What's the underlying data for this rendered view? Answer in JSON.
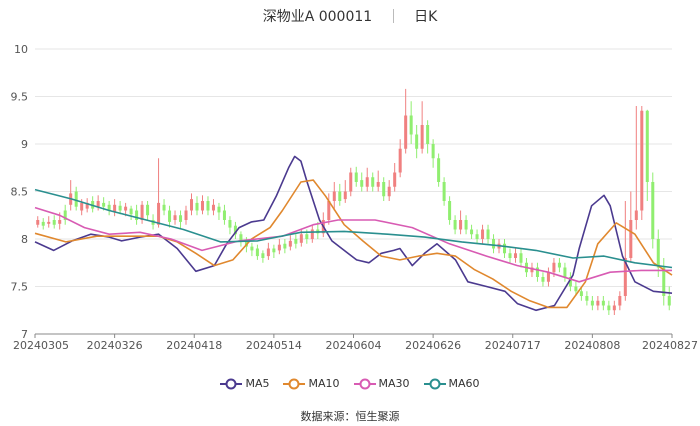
{
  "header": {
    "stock_name": "深物业A 000011",
    "period": "日K"
  },
  "source": "数据来源：恒生聚源",
  "colors": {
    "up": "#f08080",
    "down": "#90ee70",
    "grid": "#e6e6e6",
    "axis": "#888888"
  },
  "chart_data": {
    "type": "candlestick",
    "title": "深物业A 000011",
    "period": "日K",
    "ylim": [
      7,
      10
    ],
    "yticks": [
      "10",
      "9.5",
      "9",
      "8.5",
      "8",
      "7.5",
      "7"
    ],
    "xticks": [
      "20240305",
      "20240326",
      "20240418",
      "20240514",
      "20240604",
      "20240626",
      "20240717",
      "20240808",
      "20240827"
    ],
    "grid": true,
    "legend_position": "bottom",
    "series": [
      {
        "name": "MA5",
        "color": "#4b3a8f",
        "values": [
          [
            0,
            7.97
          ],
          [
            6,
            7.88
          ],
          [
            12,
            7.98
          ],
          [
            18,
            8.05
          ],
          [
            24,
            8.02
          ],
          [
            28,
            7.98
          ],
          [
            34,
            8.02
          ],
          [
            40,
            8.05
          ],
          [
            46,
            7.9
          ],
          [
            52,
            7.66
          ],
          [
            58,
            7.72
          ],
          [
            62,
            7.95
          ],
          [
            66,
            8.12
          ],
          [
            70,
            8.18
          ],
          [
            74,
            8.2
          ],
          [
            78,
            8.45
          ],
          [
            82,
            8.75
          ],
          [
            84,
            8.87
          ],
          [
            86,
            8.82
          ],
          [
            88,
            8.6
          ],
          [
            92,
            8.2
          ],
          [
            96,
            7.98
          ],
          [
            100,
            7.88
          ],
          [
            104,
            7.78
          ],
          [
            108,
            7.75
          ],
          [
            112,
            7.85
          ],
          [
            116,
            7.88
          ],
          [
            118,
            7.9
          ],
          [
            122,
            7.72
          ],
          [
            126,
            7.85
          ],
          [
            130,
            7.95
          ],
          [
            136,
            7.78
          ],
          [
            140,
            7.55
          ],
          [
            146,
            7.5
          ],
          [
            152,
            7.45
          ],
          [
            156,
            7.32
          ],
          [
            162,
            7.25
          ],
          [
            168,
            7.3
          ],
          [
            174,
            7.62
          ],
          [
            176,
            7.9
          ],
          [
            180,
            8.35
          ],
          [
            184,
            8.46
          ],
          [
            186,
            8.35
          ],
          [
            190,
            7.82
          ],
          [
            194,
            7.55
          ],
          [
            200,
            7.45
          ],
          [
            206,
            7.43
          ]
        ]
      },
      {
        "name": "MA10",
        "color": "#e0882e",
        "values": [
          [
            0,
            8.06
          ],
          [
            10,
            7.97
          ],
          [
            20,
            8.03
          ],
          [
            30,
            8.03
          ],
          [
            40,
            8.03
          ],
          [
            46,
            7.97
          ],
          [
            52,
            7.85
          ],
          [
            58,
            7.72
          ],
          [
            64,
            7.78
          ],
          [
            70,
            8.0
          ],
          [
            76,
            8.12
          ],
          [
            80,
            8.3
          ],
          [
            86,
            8.6
          ],
          [
            90,
            8.62
          ],
          [
            94,
            8.45
          ],
          [
            100,
            8.15
          ],
          [
            106,
            7.98
          ],
          [
            112,
            7.82
          ],
          [
            118,
            7.78
          ],
          [
            124,
            7.82
          ],
          [
            130,
            7.85
          ],
          [
            136,
            7.82
          ],
          [
            142,
            7.68
          ],
          [
            148,
            7.58
          ],
          [
            154,
            7.45
          ],
          [
            160,
            7.35
          ],
          [
            166,
            7.28
          ],
          [
            172,
            7.28
          ],
          [
            178,
            7.55
          ],
          [
            182,
            7.95
          ],
          [
            188,
            8.17
          ],
          [
            194,
            8.05
          ],
          [
            200,
            7.75
          ],
          [
            206,
            7.62
          ]
        ]
      },
      {
        "name": "MA30",
        "color": "#d85bb3",
        "values": [
          [
            0,
            8.33
          ],
          [
            8,
            8.25
          ],
          [
            16,
            8.12
          ],
          [
            24,
            8.05
          ],
          [
            34,
            8.07
          ],
          [
            44,
            8.0
          ],
          [
            54,
            7.88
          ],
          [
            66,
            7.98
          ],
          [
            80,
            8.03
          ],
          [
            90,
            8.15
          ],
          [
            98,
            8.2
          ],
          [
            110,
            8.2
          ],
          [
            122,
            8.12
          ],
          [
            134,
            7.95
          ],
          [
            146,
            7.82
          ],
          [
            156,
            7.72
          ],
          [
            166,
            7.65
          ],
          [
            176,
            7.55
          ],
          [
            186,
            7.65
          ],
          [
            196,
            7.67
          ],
          [
            206,
            7.67
          ]
        ]
      },
      {
        "name": "MA60",
        "color": "#2a8f8f",
        "values": [
          [
            0,
            8.52
          ],
          [
            12,
            8.42
          ],
          [
            24,
            8.3
          ],
          [
            36,
            8.2
          ],
          [
            48,
            8.1
          ],
          [
            60,
            7.97
          ],
          [
            72,
            7.98
          ],
          [
            86,
            8.07
          ],
          [
            100,
            8.08
          ],
          [
            114,
            8.05
          ],
          [
            126,
            8.02
          ],
          [
            138,
            7.97
          ],
          [
            150,
            7.93
          ],
          [
            162,
            7.88
          ],
          [
            174,
            7.8
          ],
          [
            184,
            7.82
          ],
          [
            194,
            7.75
          ],
          [
            206,
            7.7
          ]
        ]
      }
    ],
    "candles": [
      [
        8.15,
        8.2,
        8.12,
        8.24
      ],
      [
        8.18,
        8.14,
        8.1,
        8.22
      ],
      [
        8.16,
        8.18,
        8.12,
        8.24
      ],
      [
        8.2,
        8.15,
        8.11,
        8.25
      ],
      [
        8.16,
        8.2,
        8.1,
        8.28
      ],
      [
        8.3,
        8.2,
        8.15,
        8.36
      ],
      [
        8.36,
        8.48,
        8.3,
        8.62
      ],
      [
        8.5,
        8.34,
        8.3,
        8.55
      ],
      [
        8.3,
        8.38,
        8.25,
        8.42
      ],
      [
        8.32,
        8.38,
        8.28,
        8.43
      ],
      [
        8.4,
        8.32,
        8.28,
        8.45
      ],
      [
        8.34,
        8.4,
        8.3,
        8.46
      ],
      [
        8.38,
        8.34,
        8.3,
        8.44
      ],
      [
        8.36,
        8.3,
        8.25,
        8.4
      ],
      [
        8.28,
        8.36,
        8.24,
        8.42
      ],
      [
        8.35,
        8.3,
        8.26,
        8.4
      ],
      [
        8.3,
        8.34,
        8.24,
        8.38
      ],
      [
        8.32,
        8.26,
        8.2,
        8.35
      ],
      [
        8.3,
        8.2,
        8.15,
        8.36
      ],
      [
        8.2,
        8.36,
        8.16,
        8.4
      ],
      [
        8.36,
        8.25,
        8.2,
        8.4
      ],
      [
        8.2,
        8.15,
        8.1,
        8.26
      ],
      [
        8.15,
        8.38,
        8.12,
        8.85
      ],
      [
        8.36,
        8.3,
        8.25,
        8.42
      ],
      [
        8.3,
        8.18,
        8.12,
        8.35
      ],
      [
        8.2,
        8.25,
        8.15,
        8.3
      ],
      [
        8.25,
        8.18,
        8.1,
        8.3
      ],
      [
        8.2,
        8.3,
        8.15,
        8.35
      ],
      [
        8.3,
        8.42,
        8.25,
        8.48
      ],
      [
        8.38,
        8.3,
        8.25,
        8.45
      ],
      [
        8.3,
        8.4,
        8.26,
        8.46
      ],
      [
        8.4,
        8.3,
        8.25,
        8.45
      ],
      [
        8.3,
        8.36,
        8.25,
        8.42
      ],
      [
        8.34,
        8.28,
        8.2,
        8.38
      ],
      [
        8.3,
        8.2,
        8.15,
        8.36
      ],
      [
        8.2,
        8.12,
        8.05,
        8.24
      ],
      [
        8.14,
        8.05,
        8.0,
        8.18
      ],
      [
        8.05,
        7.98,
        7.92,
        8.08
      ],
      [
        7.98,
        7.92,
        7.86,
        8.02
      ],
      [
        7.92,
        7.88,
        7.82,
        7.96
      ],
      [
        7.9,
        7.82,
        7.78,
        7.94
      ],
      [
        7.85,
        7.8,
        7.75,
        7.88
      ],
      [
        7.82,
        7.9,
        7.78,
        7.96
      ],
      [
        7.9,
        7.86,
        7.8,
        7.94
      ],
      [
        7.88,
        7.94,
        7.84,
        8.0
      ],
      [
        7.95,
        7.9,
        7.85,
        8.0
      ],
      [
        7.92,
        7.98,
        7.88,
        8.04
      ],
      [
        8.0,
        7.95,
        7.9,
        8.05
      ],
      [
        7.96,
        8.05,
        7.92,
        8.1
      ],
      [
        8.05,
        8.0,
        7.95,
        8.1
      ],
      [
        8.0,
        8.1,
        7.96,
        8.15
      ],
      [
        8.1,
        8.06,
        8.0,
        8.18
      ],
      [
        8.06,
        8.2,
        8.02,
        8.28
      ],
      [
        8.2,
        8.4,
        8.15,
        8.48
      ],
      [
        8.4,
        8.5,
        8.3,
        8.6
      ],
      [
        8.5,
        8.4,
        8.35,
        8.58
      ],
      [
        8.42,
        8.5,
        8.38,
        8.62
      ],
      [
        8.5,
        8.7,
        8.45,
        8.75
      ],
      [
        8.7,
        8.6,
        8.55,
        8.76
      ],
      [
        8.62,
        8.55,
        8.5,
        8.7
      ],
      [
        8.55,
        8.65,
        8.5,
        8.75
      ],
      [
        8.65,
        8.55,
        8.5,
        8.7
      ],
      [
        8.55,
        8.6,
        8.5,
        8.72
      ],
      [
        8.6,
        8.45,
        8.4,
        8.65
      ],
      [
        8.45,
        8.55,
        8.4,
        8.62
      ],
      [
        8.55,
        8.7,
        8.5,
        8.8
      ],
      [
        8.7,
        8.95,
        8.65,
        9.05
      ],
      [
        8.95,
        9.3,
        8.9,
        9.58
      ],
      [
        9.3,
        9.1,
        9.0,
        9.45
      ],
      [
        9.1,
        8.95,
        8.85,
        9.2
      ],
      [
        8.95,
        9.2,
        8.9,
        9.45
      ],
      [
        9.2,
        9.0,
        8.9,
        9.25
      ],
      [
        9.0,
        8.85,
        8.75,
        9.05
      ],
      [
        8.85,
        8.6,
        8.55,
        8.9
      ],
      [
        8.6,
        8.4,
        8.35,
        8.65
      ],
      [
        8.4,
        8.2,
        8.15,
        8.45
      ],
      [
        8.2,
        8.1,
        8.05,
        8.25
      ],
      [
        8.1,
        8.2,
        8.05,
        8.3
      ],
      [
        8.2,
        8.1,
        8.05,
        8.25
      ],
      [
        8.1,
        8.05,
        8.0,
        8.15
      ],
      [
        8.05,
        8.0,
        7.95,
        8.1
      ],
      [
        8.0,
        8.1,
        7.95,
        8.15
      ],
      [
        8.1,
        8.0,
        7.95,
        8.15
      ],
      [
        8.0,
        7.9,
        7.85,
        8.05
      ],
      [
        7.9,
        7.95,
        7.85,
        8.0
      ],
      [
        7.95,
        7.85,
        7.8,
        8.0
      ],
      [
        7.85,
        7.8,
        7.75,
        7.9
      ],
      [
        7.8,
        7.85,
        7.75,
        7.9
      ],
      [
        7.85,
        7.75,
        7.7,
        7.9
      ],
      [
        7.75,
        7.65,
        7.6,
        7.8
      ],
      [
        7.65,
        7.7,
        7.6,
        7.75
      ],
      [
        7.7,
        7.6,
        7.55,
        7.75
      ],
      [
        7.6,
        7.55,
        7.5,
        7.65
      ],
      [
        7.55,
        7.65,
        7.5,
        7.7
      ],
      [
        7.65,
        7.75,
        7.6,
        7.8
      ],
      [
        7.75,
        7.7,
        7.65,
        7.8
      ],
      [
        7.7,
        7.6,
        7.55,
        7.75
      ],
      [
        7.6,
        7.5,
        7.45,
        7.65
      ],
      [
        7.5,
        7.45,
        7.4,
        7.55
      ],
      [
        7.45,
        7.4,
        7.35,
        7.5
      ],
      [
        7.4,
        7.35,
        7.3,
        7.45
      ],
      [
        7.35,
        7.3,
        7.25,
        7.4
      ],
      [
        7.3,
        7.35,
        7.25,
        7.4
      ],
      [
        7.35,
        7.3,
        7.25,
        7.4
      ],
      [
        7.3,
        7.25,
        7.2,
        7.35
      ],
      [
        7.25,
        7.3,
        7.2,
        7.35
      ],
      [
        7.3,
        7.4,
        7.25,
        7.45
      ],
      [
        7.4,
        7.8,
        7.35,
        8.4
      ],
      [
        7.8,
        8.2,
        7.75,
        8.5
      ],
      [
        8.2,
        8.3,
        8.1,
        9.4
      ],
      [
        8.3,
        9.35,
        8.2,
        9.4
      ],
      [
        9.35,
        8.6,
        8.4,
        9.36
      ],
      [
        8.6,
        8.0,
        7.9,
        8.7
      ],
      [
        8.0,
        7.7,
        7.6,
        8.1
      ],
      [
        7.7,
        7.4,
        7.3,
        7.8
      ],
      [
        7.4,
        7.3,
        7.25,
        7.5
      ]
    ],
    "candle_count": 116
  }
}
